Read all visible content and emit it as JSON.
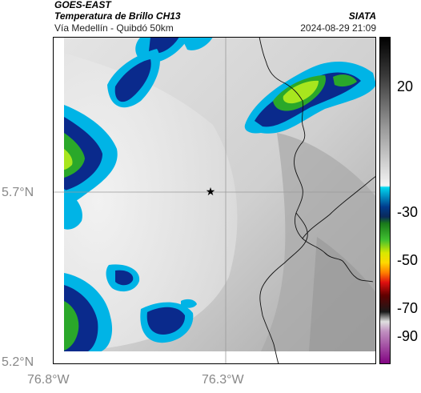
{
  "header": {
    "satellite": "GOES-EAST",
    "product": "Temperatura de Brillo CH13",
    "region": "Vía Medellín - Quibdó 50km",
    "agency": "SIATA",
    "datetime": "2024-08-29 21:09"
  },
  "axes": {
    "lat_labels": [
      "5.7°N",
      "5.2°N"
    ],
    "lon_labels": [
      "76.8°W",
      "76.3°W"
    ]
  },
  "colorbar": {
    "ticks": [
      "20",
      "-30",
      "-50",
      "-70",
      "-90"
    ]
  },
  "colors": {
    "cold_cloud_cyan": "#00b4e6",
    "deep_blue": "#0a2a8c",
    "green": "#2aa82a",
    "yellow_green": "#a8e61e",
    "surface_gray": "#c8c8c8"
  }
}
